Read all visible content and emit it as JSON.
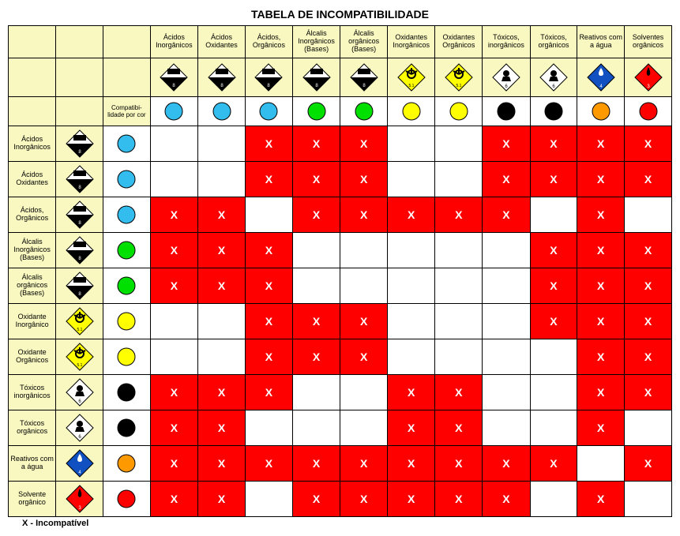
{
  "title": "TABELA DE INCOMPATIBILIDADE",
  "legend": "X - Incompatível",
  "compat_label": "Compatibi-lidade por cor",
  "header_bg": "#f8f8c0",
  "x_bg": "#ff0000",
  "x_mark": "X",
  "blank_bg": "#ffffff",
  "columns": [
    {
      "label": "Ácidos Inorgânicos",
      "hazard": "corrosive",
      "color": "#33bdef"
    },
    {
      "label": "Ácidos Oxidantes",
      "hazard": "corrosive",
      "color": "#33bdef"
    },
    {
      "label": "Ácidos, Orgânicos",
      "hazard": "corrosive",
      "color": "#33bdef"
    },
    {
      "label": "Álcalis Inorgânicos (Bases)",
      "hazard": "corrosive",
      "color": "#00e000"
    },
    {
      "label": "Álcalis orgânicos (Bases)",
      "hazard": "corrosive",
      "color": "#00e000"
    },
    {
      "label": "Oxidantes Inorgânicos",
      "hazard": "oxidizer",
      "color": "#ffff00"
    },
    {
      "label": "Oxidantes Orgânicos",
      "hazard": "oxidizer",
      "color": "#ffff00"
    },
    {
      "label": "Tóxicos, inorgânicos",
      "hazard": "toxic",
      "color": "#000000"
    },
    {
      "label": "Tóxicos, orgânicos",
      "hazard": "toxic",
      "color": "#000000"
    },
    {
      "label": "Reativos com a água",
      "hazard": "water",
      "color": "#ff9900"
    },
    {
      "label": "Solventes orgânicos",
      "hazard": "flammable",
      "color": "#ff0000"
    }
  ],
  "rows": [
    {
      "label": "Ácidos Inorgânicos",
      "hazard": "corrosive",
      "color": "#33bdef",
      "cells": [
        0,
        0,
        1,
        1,
        1,
        0,
        0,
        1,
        1,
        1,
        1
      ]
    },
    {
      "label": "Ácidos Oxidantes",
      "hazard": "corrosive",
      "color": "#33bdef",
      "cells": [
        0,
        0,
        1,
        1,
        1,
        0,
        0,
        1,
        1,
        1,
        1
      ]
    },
    {
      "label": "Ácidos, Orgânicos",
      "hazard": "corrosive",
      "color": "#33bdef",
      "cells": [
        1,
        1,
        0,
        1,
        1,
        1,
        1,
        1,
        0,
        1,
        0
      ]
    },
    {
      "label": "Álcalis Inorgânicos (Bases)",
      "hazard": "corrosive",
      "color": "#00e000",
      "cells": [
        1,
        1,
        1,
        0,
        0,
        0,
        0,
        0,
        1,
        1,
        1
      ]
    },
    {
      "label": "Álcalis orgânicos (Bases)",
      "hazard": "corrosive",
      "color": "#00e000",
      "cells": [
        1,
        1,
        1,
        0,
        0,
        0,
        0,
        0,
        1,
        1,
        1
      ]
    },
    {
      "label": "Oxidante Inorgânico",
      "hazard": "oxidizer",
      "color": "#ffff00",
      "cells": [
        0,
        0,
        1,
        1,
        1,
        0,
        0,
        0,
        1,
        1,
        1
      ]
    },
    {
      "label": "Oxidante Orgânicos",
      "hazard": "oxidizer",
      "color": "#ffff00",
      "cells": [
        0,
        0,
        1,
        1,
        1,
        0,
        0,
        0,
        0,
        1,
        1
      ]
    },
    {
      "label": "Tóxicos inorgânicos",
      "hazard": "toxic",
      "color": "#000000",
      "cells": [
        1,
        1,
        1,
        0,
        0,
        1,
        1,
        0,
        0,
        1,
        1
      ]
    },
    {
      "label": "Tóxicos orgânicos",
      "hazard": "toxic",
      "color": "#000000",
      "cells": [
        1,
        1,
        0,
        0,
        0,
        1,
        1,
        0,
        0,
        1,
        0
      ]
    },
    {
      "label": "Reativos com a água",
      "hazard": "water",
      "color": "#ff9900",
      "cells": [
        1,
        1,
        1,
        1,
        1,
        1,
        1,
        1,
        1,
        0,
        1
      ]
    },
    {
      "label": "Solvente orgânico",
      "hazard": "flammable",
      "color": "#ff0000",
      "cells": [
        1,
        1,
        0,
        1,
        1,
        1,
        1,
        1,
        0,
        1,
        0
      ]
    }
  ]
}
